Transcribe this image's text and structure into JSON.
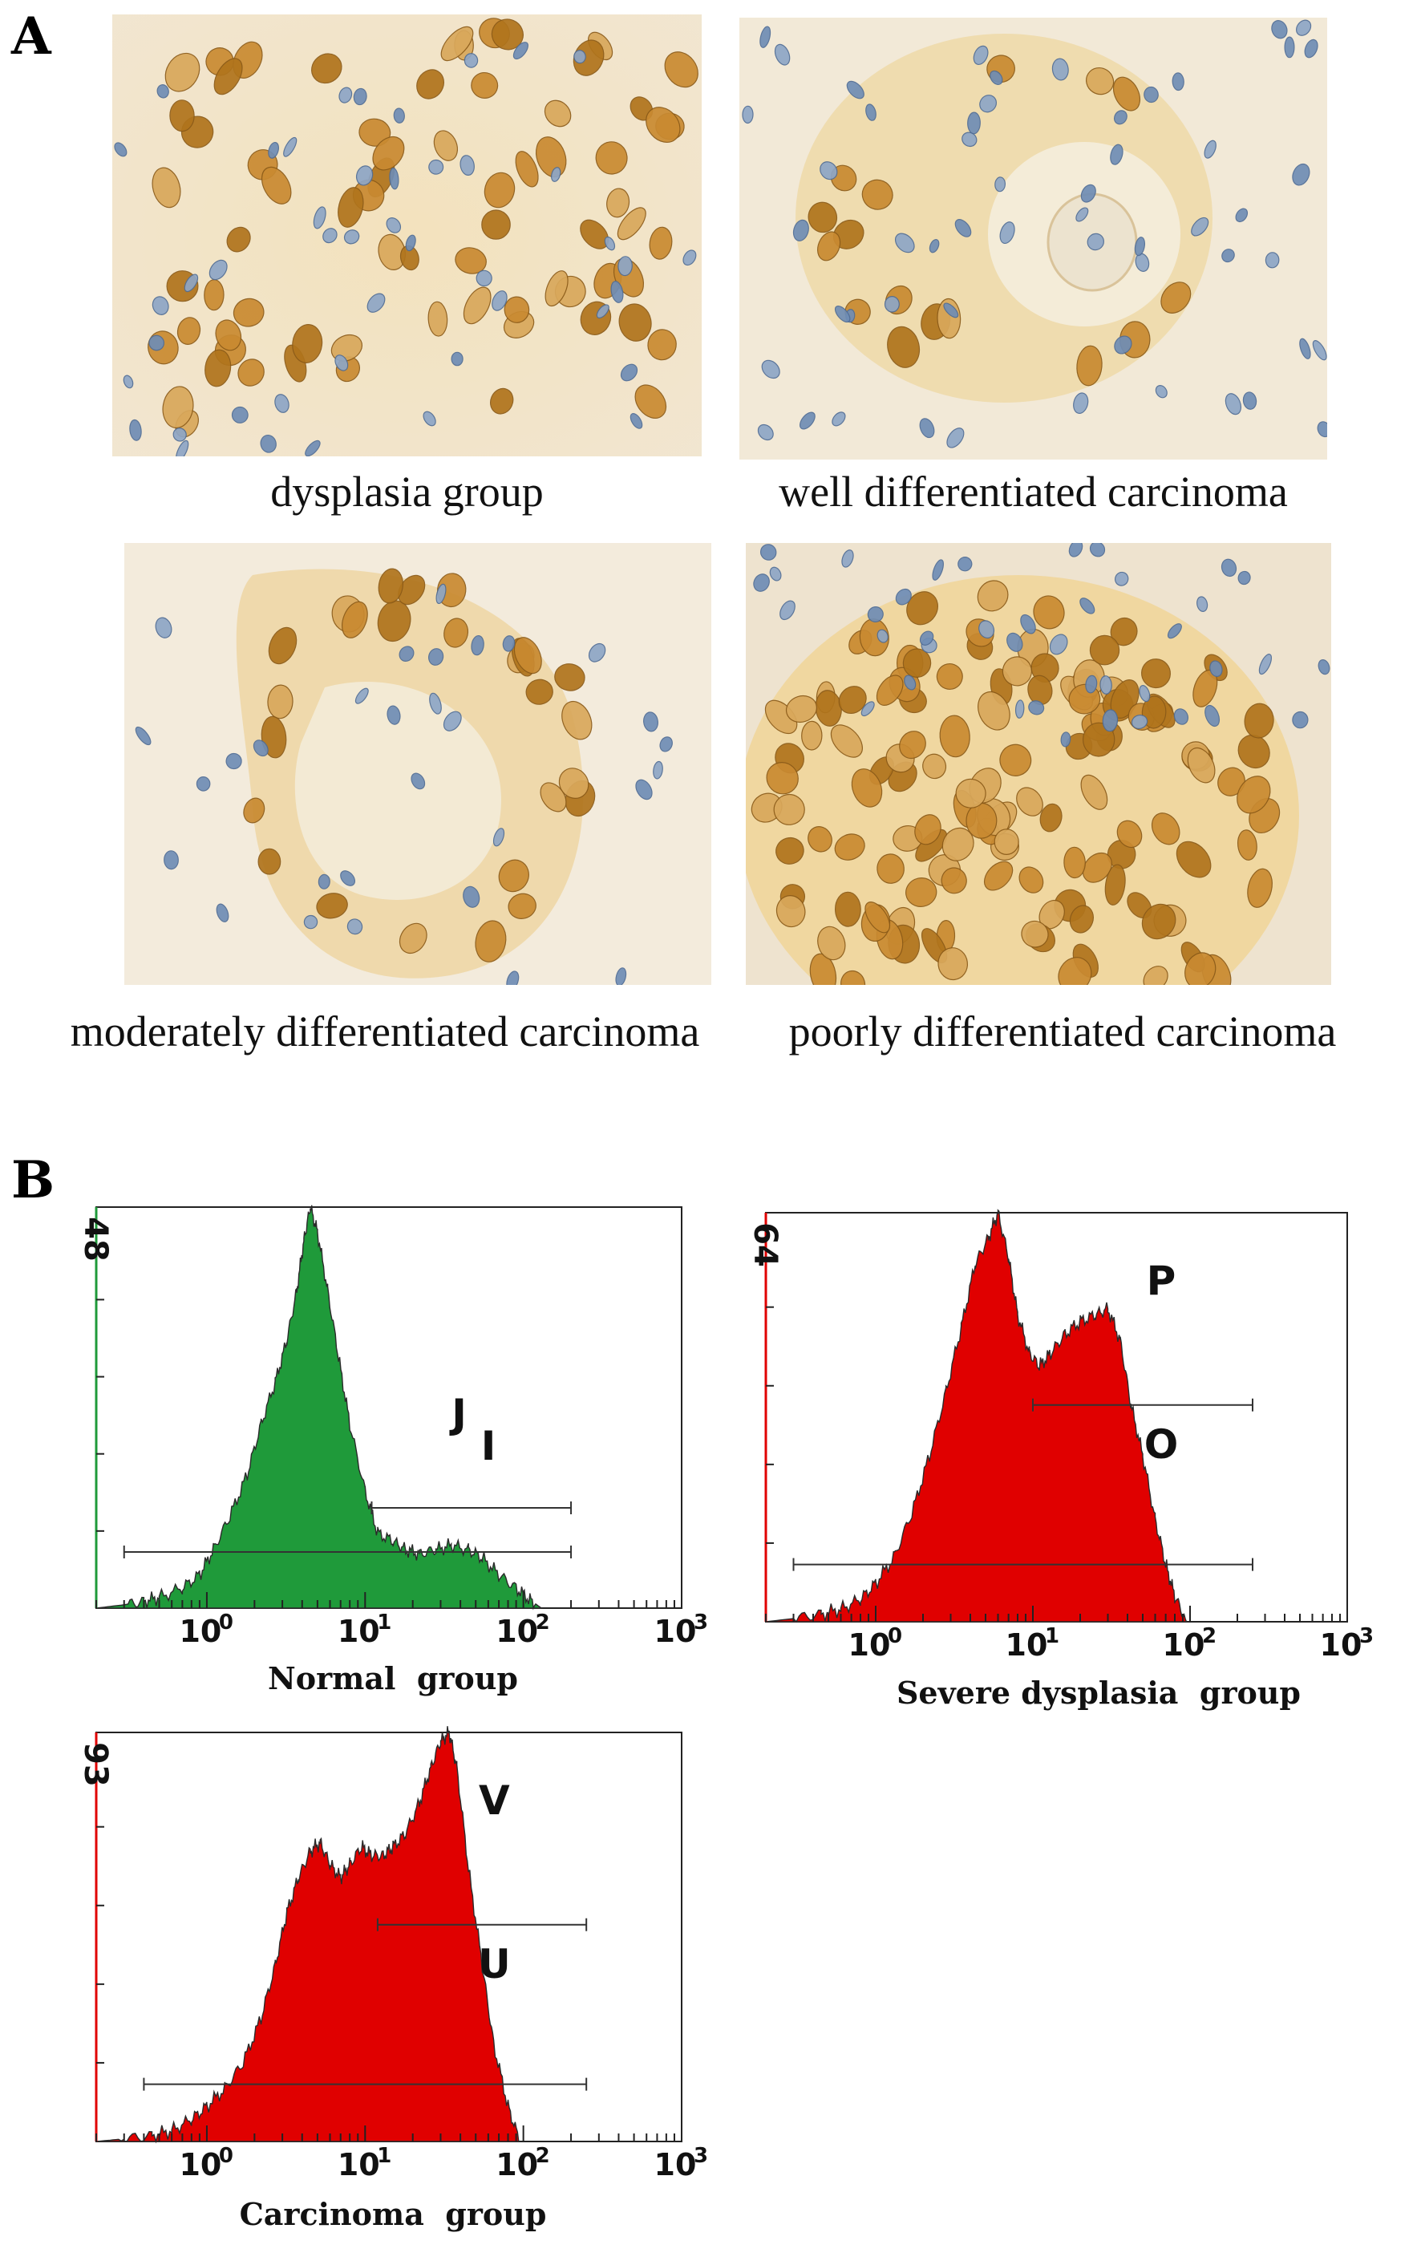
{
  "panels": {
    "a": {
      "letter": "A",
      "images": [
        {
          "caption": "dysplasia  group"
        },
        {
          "caption": "well differentiated carcinoma"
        },
        {
          "caption": "moderately  differentiated carcinoma"
        },
        {
          "caption": "poorly differentiated carcinoma"
        }
      ]
    },
    "b": {
      "letter": "B"
    }
  },
  "chart_data": [
    {
      "type": "area",
      "title": "Normal  group",
      "color": "#1f9a3a",
      "scale": "log",
      "xlim": [
        0.2,
        1000
      ],
      "x_tick_labels": [
        "10",
        "0",
        "10",
        "1",
        "10",
        "2",
        "10",
        "3"
      ],
      "ymax_label": "48",
      "ylim": [
        0,
        48
      ],
      "gate_labels": [
        "J",
        "I"
      ],
      "gates": [
        {
          "from": 0.3,
          "to": 200
        },
        {
          "from": 11,
          "to": 200
        }
      ],
      "x": [
        0.2,
        0.3,
        0.4,
        0.5,
        0.7,
        0.9,
        1.1,
        1.4,
        1.8,
        2.2,
        2.7,
        3.2,
        3.7,
        4.1,
        4.5,
        5,
        5.8,
        6.8,
        8,
        10,
        12,
        15,
        18,
        22,
        28,
        35,
        45,
        55,
        70,
        90,
        110,
        130
      ],
      "values": [
        0,
        0.4,
        0.8,
        1.3,
        2.4,
        4,
        7,
        11,
        16,
        22,
        27,
        32,
        38,
        44,
        48,
        45,
        38,
        30,
        22,
        14,
        9,
        8,
        7,
        6.5,
        7,
        7.5,
        7,
        6,
        4,
        2.4,
        1,
        0
      ]
    },
    {
      "type": "area",
      "title": "Severe dysplasia  group",
      "color": "#e00000",
      "scale": "log",
      "xlim": [
        0.2,
        1000
      ],
      "x_tick_labels": [
        "10",
        "0",
        "10",
        "1",
        "10",
        "2",
        "10",
        "3"
      ],
      "ymax_label": "64",
      "ylim": [
        0,
        64
      ],
      "gate_labels": [
        "P",
        "O"
      ],
      "gates": [
        {
          "from": 0.3,
          "to": 250
        },
        {
          "from": 10,
          "to": 250
        }
      ],
      "x": [
        0.2,
        0.3,
        0.45,
        0.6,
        0.8,
        1,
        1.3,
        1.7,
        2.2,
        2.8,
        3.5,
        4.3,
        5.2,
        6,
        7,
        8,
        9.5,
        11,
        13,
        16,
        20,
        25,
        30,
        36,
        42,
        50,
        60,
        70,
        80,
        95
      ],
      "values": [
        0,
        0.5,
        1.2,
        2,
        3.5,
        6,
        10,
        17,
        26,
        36,
        46,
        56,
        60,
        64,
        57,
        48,
        42,
        40,
        42,
        45,
        47,
        48,
        49,
        44,
        34,
        26,
        16,
        9,
        4,
        0
      ]
    },
    {
      "type": "area",
      "title": "Carcinoma  group",
      "color": "#e00000",
      "scale": "log",
      "xlim": [
        0.2,
        1000
      ],
      "x_tick_labels": [
        "10",
        "0",
        "10",
        "1",
        "10",
        "2",
        "10",
        "3"
      ],
      "ymax_label": "93",
      "ylim": [
        0,
        93
      ],
      "gate_labels": [
        "V",
        "U"
      ],
      "gates": [
        {
          "from": 0.4,
          "to": 250
        },
        {
          "from": 12,
          "to": 250
        }
      ],
      "x": [
        0.2,
        0.3,
        0.45,
        0.6,
        0.8,
        1,
        1.3,
        1.7,
        2.2,
        2.7,
        3.2,
        3.8,
        4.5,
        5.2,
        6,
        7,
        8,
        9.5,
        11,
        13,
        15,
        18,
        22,
        26,
        30,
        34,
        38,
        45,
        55,
        65,
        80,
        95
      ],
      "values": [
        0,
        0.6,
        1.3,
        2.5,
        5,
        8,
        12,
        18,
        28,
        40,
        52,
        60,
        66,
        68,
        63,
        60,
        63,
        67,
        65,
        65,
        67,
        70,
        77,
        85,
        91,
        93,
        85,
        62,
        40,
        22,
        8,
        0
      ]
    }
  ]
}
